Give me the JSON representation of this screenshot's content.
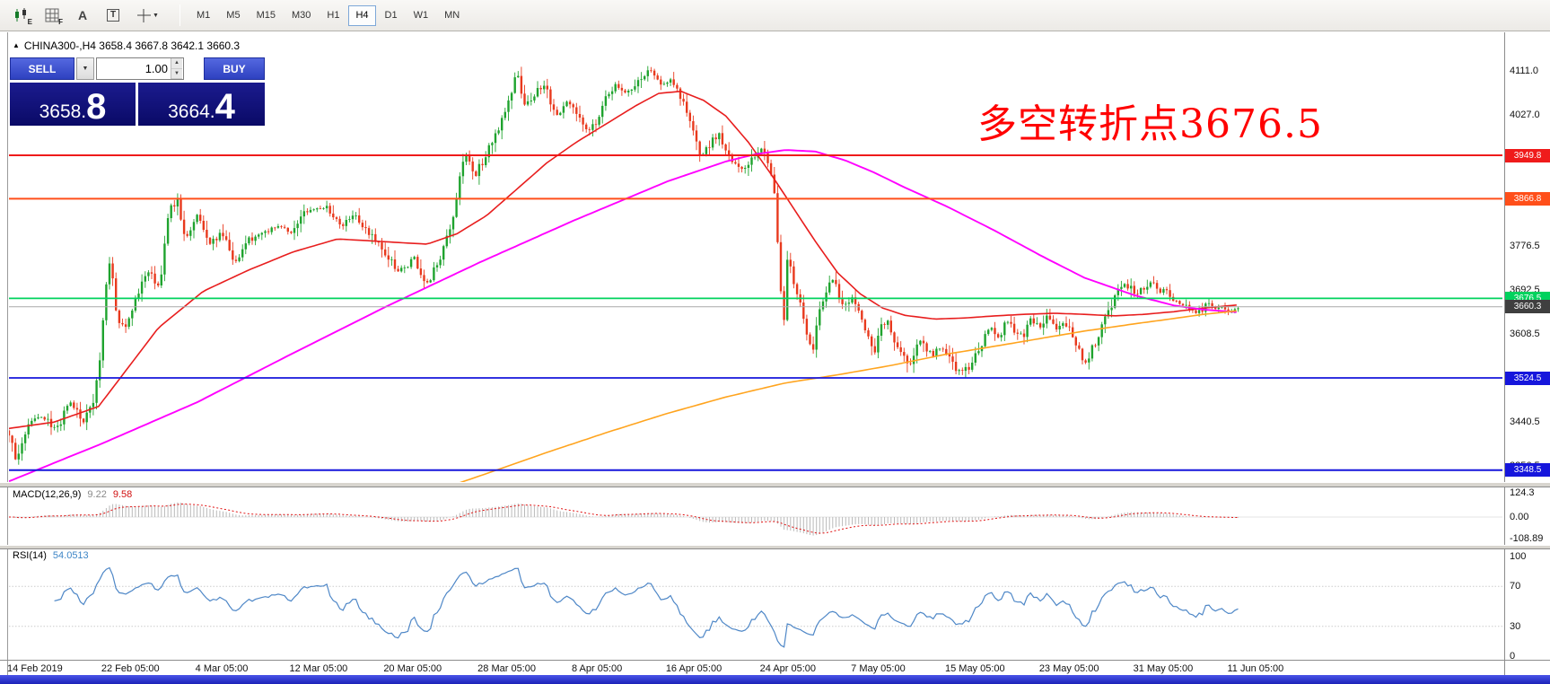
{
  "glyphs": {
    "collapse_up": "▲",
    "caret_down": "▼",
    "spinner_up": "▲",
    "spinner_down": "▼"
  },
  "toolbar": {
    "icons": [
      {
        "name": "candlestick-chart-icon",
        "sub": "E"
      },
      {
        "name": "indicator-grid-icon",
        "sub": "F"
      },
      {
        "name": "text-annotation-icon",
        "label": "A"
      },
      {
        "name": "text-label-icon",
        "label": "T"
      },
      {
        "name": "crosshair-pointer-icon",
        "sub": ""
      }
    ],
    "timeframes": [
      {
        "label": "M1",
        "active": false
      },
      {
        "label": "M5",
        "active": false
      },
      {
        "label": "M15",
        "active": false
      },
      {
        "label": "M30",
        "active": false
      },
      {
        "label": "H1",
        "active": false
      },
      {
        "label": "H4",
        "active": true
      },
      {
        "label": "D1",
        "active": false
      },
      {
        "label": "W1",
        "active": false
      },
      {
        "label": "MN",
        "active": false
      }
    ]
  },
  "chart": {
    "title": "CHINA300-,H4 3658.4 3667.8 3642.1 3660.3",
    "annotation": {
      "text": "多空转折点3676.5",
      "color": "#ff0000"
    },
    "trade_panel": {
      "sell_label": "SELL",
      "buy_label": "BUY",
      "lot_value": "1.00",
      "sell_price_main": "3658.",
      "sell_price_big": "8",
      "buy_price_main": "3664.",
      "buy_price_big": "4"
    }
  },
  "chart_data": {
    "type": "candlestick",
    "symbol": "CHINA300-",
    "timeframe": "H4",
    "ohlc": {
      "open": 3658.4,
      "high": 3667.8,
      "low": 3642.1,
      "close": 3660.3
    },
    "candle_colors": {
      "up": "#1fa32e",
      "down": "#e8391d"
    },
    "price_axis": {
      "labels": [
        "4111.0",
        "4027.0",
        "3776.5",
        "3692.5",
        "3608.5",
        "3524.5",
        "3440.5",
        "3356.5"
      ]
    },
    "hlines": [
      {
        "value": "3949.8",
        "price": 3949.8,
        "color": "#ef1b1b",
        "width": 2
      },
      {
        "value": "3866.8",
        "price": 3866.8,
        "color": "#ff4f1a",
        "width": 2
      },
      {
        "value": "3676.5",
        "price": 3676.5,
        "color": "#00d25e",
        "width": 1.8
      },
      {
        "value": "3524.5",
        "price": 3524.5,
        "color": "#1616dc",
        "width": 1.8
      },
      {
        "value": "3348.5",
        "price": 3348.5,
        "color": "#1616dc",
        "width": 2
      }
    ],
    "current_price": {
      "value": "3660.3",
      "price": 3660.3,
      "line_color": "#a9a9a9",
      "badge_color": "#3f3f3f"
    },
    "candles": {
      "count": 380,
      "f_max": 0.823,
      "seed": 20190613,
      "anchors": [
        [
          0.0,
          3420
        ],
        [
          0.005,
          3360
        ],
        [
          0.013,
          3440
        ],
        [
          0.023,
          3450
        ],
        [
          0.032,
          3425
        ],
        [
          0.041,
          3480
        ],
        [
          0.05,
          3440
        ],
        [
          0.056,
          3470
        ],
        [
          0.061,
          3560
        ],
        [
          0.065,
          3700
        ],
        [
          0.068,
          3755
        ],
        [
          0.072,
          3640
        ],
        [
          0.078,
          3620
        ],
        [
          0.086,
          3680
        ],
        [
          0.094,
          3735
        ],
        [
          0.101,
          3690
        ],
        [
          0.107,
          3845
        ],
        [
          0.113,
          3860
        ],
        [
          0.118,
          3790
        ],
        [
          0.126,
          3835
        ],
        [
          0.134,
          3780
        ],
        [
          0.143,
          3805
        ],
        [
          0.151,
          3745
        ],
        [
          0.16,
          3785
        ],
        [
          0.169,
          3800
        ],
        [
          0.179,
          3815
        ],
        [
          0.189,
          3805
        ],
        [
          0.2,
          3845
        ],
        [
          0.212,
          3850
        ],
        [
          0.222,
          3815
        ],
        [
          0.232,
          3840
        ],
        [
          0.242,
          3795
        ],
        [
          0.252,
          3765
        ],
        [
          0.261,
          3725
        ],
        [
          0.271,
          3755
        ],
        [
          0.28,
          3705
        ],
        [
          0.29,
          3765
        ],
        [
          0.297,
          3825
        ],
        [
          0.302,
          3910
        ],
        [
          0.306,
          3950
        ],
        [
          0.312,
          3910
        ],
        [
          0.32,
          3955
        ],
        [
          0.328,
          4000
        ],
        [
          0.335,
          4060
        ],
        [
          0.34,
          4110
        ],
        [
          0.346,
          4040
        ],
        [
          0.353,
          4075
        ],
        [
          0.359,
          4085
        ],
        [
          0.366,
          4020
        ],
        [
          0.373,
          4055
        ],
        [
          0.379,
          4040
        ],
        [
          0.386,
          3995
        ],
        [
          0.393,
          4010
        ],
        [
          0.399,
          4060
        ],
        [
          0.406,
          4085
        ],
        [
          0.412,
          4070
        ],
        [
          0.419,
          4080
        ],
        [
          0.426,
          4100
        ],
        [
          0.431,
          4115
        ],
        [
          0.436,
          4085
        ],
        [
          0.443,
          4090
        ],
        [
          0.45,
          4060
        ],
        [
          0.454,
          4035
        ],
        [
          0.459,
          3980
        ],
        [
          0.464,
          3950
        ],
        [
          0.469,
          3965
        ],
        [
          0.475,
          3995
        ],
        [
          0.481,
          3955
        ],
        [
          0.487,
          3935
        ],
        [
          0.492,
          3920
        ],
        [
          0.499,
          3945
        ],
        [
          0.504,
          3960
        ],
        [
          0.509,
          3930
        ],
        [
          0.513,
          3870
        ],
        [
          0.516,
          3700
        ],
        [
          0.519,
          3640
        ],
        [
          0.521,
          3760
        ],
        [
          0.526,
          3705
        ],
        [
          0.53,
          3665
        ],
        [
          0.535,
          3605
        ],
        [
          0.538,
          3575
        ],
        [
          0.542,
          3650
        ],
        [
          0.548,
          3700
        ],
        [
          0.553,
          3715
        ],
        [
          0.558,
          3660
        ],
        [
          0.565,
          3680
        ],
        [
          0.57,
          3640
        ],
        [
          0.576,
          3600
        ],
        [
          0.58,
          3565
        ],
        [
          0.583,
          3635
        ],
        [
          0.589,
          3625
        ],
        [
          0.594,
          3590
        ],
        [
          0.599,
          3570
        ],
        [
          0.604,
          3545
        ],
        [
          0.609,
          3600
        ],
        [
          0.614,
          3585
        ],
        [
          0.619,
          3565
        ],
        [
          0.624,
          3585
        ],
        [
          0.628,
          3575
        ],
        [
          0.633,
          3545
        ],
        [
          0.637,
          3535
        ],
        [
          0.642,
          3545
        ],
        [
          0.647,
          3565
        ],
        [
          0.653,
          3600
        ],
        [
          0.658,
          3620
        ],
        [
          0.663,
          3600
        ],
        [
          0.668,
          3635
        ],
        [
          0.674,
          3615
        ],
        [
          0.679,
          3605
        ],
        [
          0.684,
          3640
        ],
        [
          0.691,
          3620
        ],
        [
          0.696,
          3645
        ],
        [
          0.702,
          3615
        ],
        [
          0.707,
          3635
        ],
        [
          0.712,
          3600
        ],
        [
          0.716,
          3580
        ],
        [
          0.721,
          3555
        ],
        [
          0.727,
          3590
        ],
        [
          0.732,
          3625
        ],
        [
          0.737,
          3655
        ],
        [
          0.743,
          3695
        ],
        [
          0.748,
          3705
        ],
        [
          0.754,
          3685
        ],
        [
          0.759,
          3695
        ],
        [
          0.765,
          3710
        ],
        [
          0.77,
          3685
        ],
        [
          0.775,
          3695
        ],
        [
          0.78,
          3675
        ],
        [
          0.786,
          3665
        ],
        [
          0.791,
          3655
        ],
        [
          0.796,
          3648
        ],
        [
          0.802,
          3668
        ],
        [
          0.807,
          3655
        ],
        [
          0.812,
          3662
        ],
        [
          0.818,
          3652
        ],
        [
          0.823,
          3660
        ]
      ]
    },
    "ma_lines": [
      {
        "name": "ma-fast-red",
        "color": "#e81e1e",
        "width": 1.6,
        "points": [
          [
            0.0,
            3428
          ],
          [
            0.03,
            3440
          ],
          [
            0.06,
            3470
          ],
          [
            0.08,
            3545
          ],
          [
            0.1,
            3620
          ],
          [
            0.13,
            3690
          ],
          [
            0.16,
            3730
          ],
          [
            0.19,
            3765
          ],
          [
            0.22,
            3790
          ],
          [
            0.25,
            3785
          ],
          [
            0.28,
            3780
          ],
          [
            0.3,
            3800
          ],
          [
            0.32,
            3835
          ],
          [
            0.34,
            3885
          ],
          [
            0.36,
            3935
          ],
          [
            0.38,
            3975
          ],
          [
            0.4,
            4010
          ],
          [
            0.42,
            4045
          ],
          [
            0.435,
            4068
          ],
          [
            0.45,
            4072
          ],
          [
            0.465,
            4055
          ],
          [
            0.48,
            4025
          ],
          [
            0.495,
            3975
          ],
          [
            0.51,
            3915
          ],
          [
            0.525,
            3850
          ],
          [
            0.54,
            3785
          ],
          [
            0.555,
            3725
          ],
          [
            0.57,
            3685
          ],
          [
            0.585,
            3658
          ],
          [
            0.6,
            3644
          ],
          [
            0.62,
            3637
          ],
          [
            0.64,
            3639
          ],
          [
            0.66,
            3643
          ],
          [
            0.68,
            3646
          ],
          [
            0.7,
            3648
          ],
          [
            0.72,
            3646
          ],
          [
            0.74,
            3643
          ],
          [
            0.76,
            3646
          ],
          [
            0.78,
            3651
          ],
          [
            0.8,
            3658
          ],
          [
            0.823,
            3664
          ]
        ]
      },
      {
        "name": "ma-mid-magenta",
        "color": "#ff00ff",
        "width": 1.9,
        "points": [
          [
            0.0,
            3327
          ],
          [
            0.063,
            3400
          ],
          [
            0.126,
            3478
          ],
          [
            0.189,
            3570
          ],
          [
            0.252,
            3660
          ],
          [
            0.315,
            3745
          ],
          [
            0.378,
            3825
          ],
          [
            0.441,
            3900
          ],
          [
            0.48,
            3938
          ],
          [
            0.5,
            3952
          ],
          [
            0.52,
            3960
          ],
          [
            0.54,
            3957
          ],
          [
            0.56,
            3940
          ],
          [
            0.58,
            3916
          ],
          [
            0.6,
            3888
          ],
          [
            0.628,
            3852
          ],
          [
            0.66,
            3806
          ],
          [
            0.691,
            3758
          ],
          [
            0.72,
            3716
          ],
          [
            0.754,
            3682
          ],
          [
            0.78,
            3663
          ],
          [
            0.8,
            3655
          ],
          [
            0.823,
            3650
          ]
        ]
      },
      {
        "name": "ma-slow-orange",
        "color": "#ffa41e",
        "width": 1.6,
        "points": [
          [
            0.285,
            3308
          ],
          [
            0.32,
            3342
          ],
          [
            0.36,
            3382
          ],
          [
            0.4,
            3420
          ],
          [
            0.44,
            3456
          ],
          [
            0.48,
            3488
          ],
          [
            0.52,
            3515
          ],
          [
            0.554,
            3530
          ],
          [
            0.59,
            3548
          ],
          [
            0.628,
            3570
          ],
          [
            0.66,
            3585
          ],
          [
            0.691,
            3600
          ],
          [
            0.72,
            3614
          ],
          [
            0.754,
            3628
          ],
          [
            0.78,
            3638
          ],
          [
            0.8,
            3646
          ],
          [
            0.823,
            3653
          ]
        ]
      }
    ],
    "macd": {
      "label": "MACD(12,26,9)",
      "value_main": "9.22",
      "value_signal": "9.58",
      "axis": [
        "124.3",
        "0.00",
        "-108.89"
      ],
      "axis_max": 124.3,
      "histogram_color": "#b9b9b9",
      "signal_color": "#e01010"
    },
    "rsi": {
      "label": "RSI(14)",
      "value": "54.0513",
      "axis": [
        "100",
        "70",
        "30",
        "0"
      ],
      "levels": [
        70,
        30
      ],
      "line_color": "#4e87c7"
    },
    "time_axis": [
      {
        "label": "14 Feb 2019",
        "f": 0.0
      },
      {
        "label": "22 Feb 05:00",
        "f": 0.063
      },
      {
        "label": "4 Mar 05:00",
        "f": 0.126
      },
      {
        "label": "12 Mar 05:00",
        "f": 0.189
      },
      {
        "label": "20 Mar 05:00",
        "f": 0.252
      },
      {
        "label": "28 Mar 05:00",
        "f": 0.315
      },
      {
        "label": "8 Apr 05:00",
        "f": 0.378
      },
      {
        "label": "16 Apr 05:00",
        "f": 0.441
      },
      {
        "label": "24 Apr 05:00",
        "f": 0.504
      },
      {
        "label": "7 May 05:00",
        "f": 0.565
      },
      {
        "label": "15 May 05:00",
        "f": 0.628
      },
      {
        "label": "23 May 05:00",
        "f": 0.691
      },
      {
        "label": "31 May 05:00",
        "f": 0.754
      },
      {
        "label": "11 Jun 05:00",
        "f": 0.817
      }
    ]
  }
}
